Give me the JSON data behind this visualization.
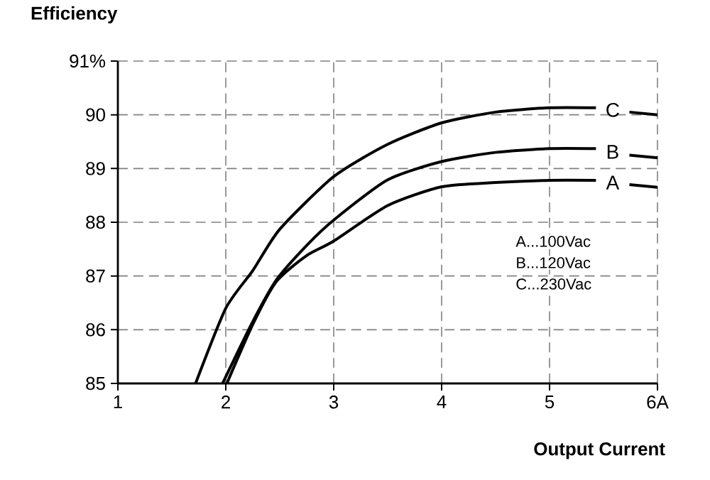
{
  "chart_data": {
    "type": "line",
    "xlabel": "Output Current",
    "ylabel": "Efficiency",
    "xlim": [
      1,
      6
    ],
    "ylim": [
      85,
      91
    ],
    "xticks": [
      1,
      2,
      3,
      4,
      5,
      {
        "value": 6,
        "label": "6A"
      }
    ],
    "yticks": [
      85,
      86,
      87,
      88,
      89,
      90,
      {
        "value": 91,
        "label": "91%"
      }
    ],
    "grid": true,
    "annotations": [
      "A...100Vac",
      "B...120Vac",
      "C...230Vac"
    ],
    "series": [
      {
        "name": "A",
        "color": "#000000",
        "x": [
          2.01,
          2.25,
          2.47,
          2.75,
          3,
          3.5,
          4,
          4.5,
          5,
          5.43,
          null,
          5.74,
          6
        ],
        "values": [
          85,
          86.1,
          86.9,
          87.38,
          87.65,
          88.31,
          88.66,
          88.74,
          88.78,
          88.78,
          null,
          88.7,
          88.65
        ]
      },
      {
        "name": "B",
        "color": "#000000",
        "x": [
          1.97,
          2.25,
          2.47,
          2.75,
          3,
          3.5,
          4,
          4.5,
          5,
          5.43,
          null,
          5.74,
          6
        ],
        "values": [
          85,
          86.15,
          86.93,
          87.57,
          88.04,
          88.79,
          89.13,
          89.3,
          89.37,
          89.37,
          null,
          89.25,
          89.2
        ]
      },
      {
        "name": "C",
        "color": "#000000",
        "x": [
          1.72,
          2,
          2.25,
          2.5,
          3,
          3.5,
          4,
          4.5,
          5,
          5.43,
          null,
          5.74,
          6
        ],
        "values": [
          85,
          86.4,
          87.1,
          87.87,
          88.85,
          89.45,
          89.85,
          90.05,
          90.13,
          90.13,
          null,
          90.05,
          90.0
        ]
      }
    ]
  }
}
